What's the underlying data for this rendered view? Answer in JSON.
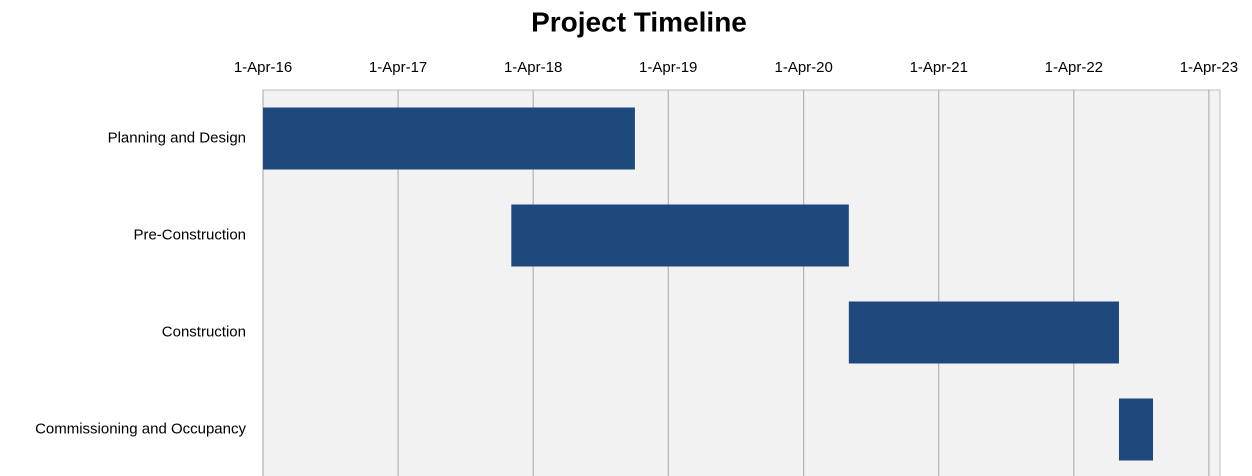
{
  "chart_data": {
    "type": "gantt",
    "title": "Project Timeline",
    "categories": [
      "Planning and Design",
      "Pre-Construction",
      "Construction",
      "Commissioning and Occupancy"
    ],
    "start": [
      "2016-04-01",
      "2018-02-01",
      "2020-08-01",
      "2022-08-01"
    ],
    "end": [
      "2019-01-01",
      "2020-08-01",
      "2022-08-01",
      "2022-11-01"
    ],
    "color": "#1f497d",
    "xlim": [
      "2016-04-01",
      "2023-05-01"
    ],
    "xticks": [
      {
        "value": "2016-04-01",
        "label": "1-Apr-16"
      },
      {
        "value": "2017-04-01",
        "label": "1-Apr-17"
      },
      {
        "value": "2018-04-01",
        "label": "1-Apr-18"
      },
      {
        "value": "2019-04-01",
        "label": "1-Apr-19"
      },
      {
        "value": "2020-04-01",
        "label": "1-Apr-20"
      },
      {
        "value": "2021-04-01",
        "label": "1-Apr-21"
      },
      {
        "value": "2022-04-01",
        "label": "1-Apr-22"
      },
      {
        "value": "2023-04-01",
        "label": "1-Apr-23"
      }
    ],
    "grid": true
  }
}
